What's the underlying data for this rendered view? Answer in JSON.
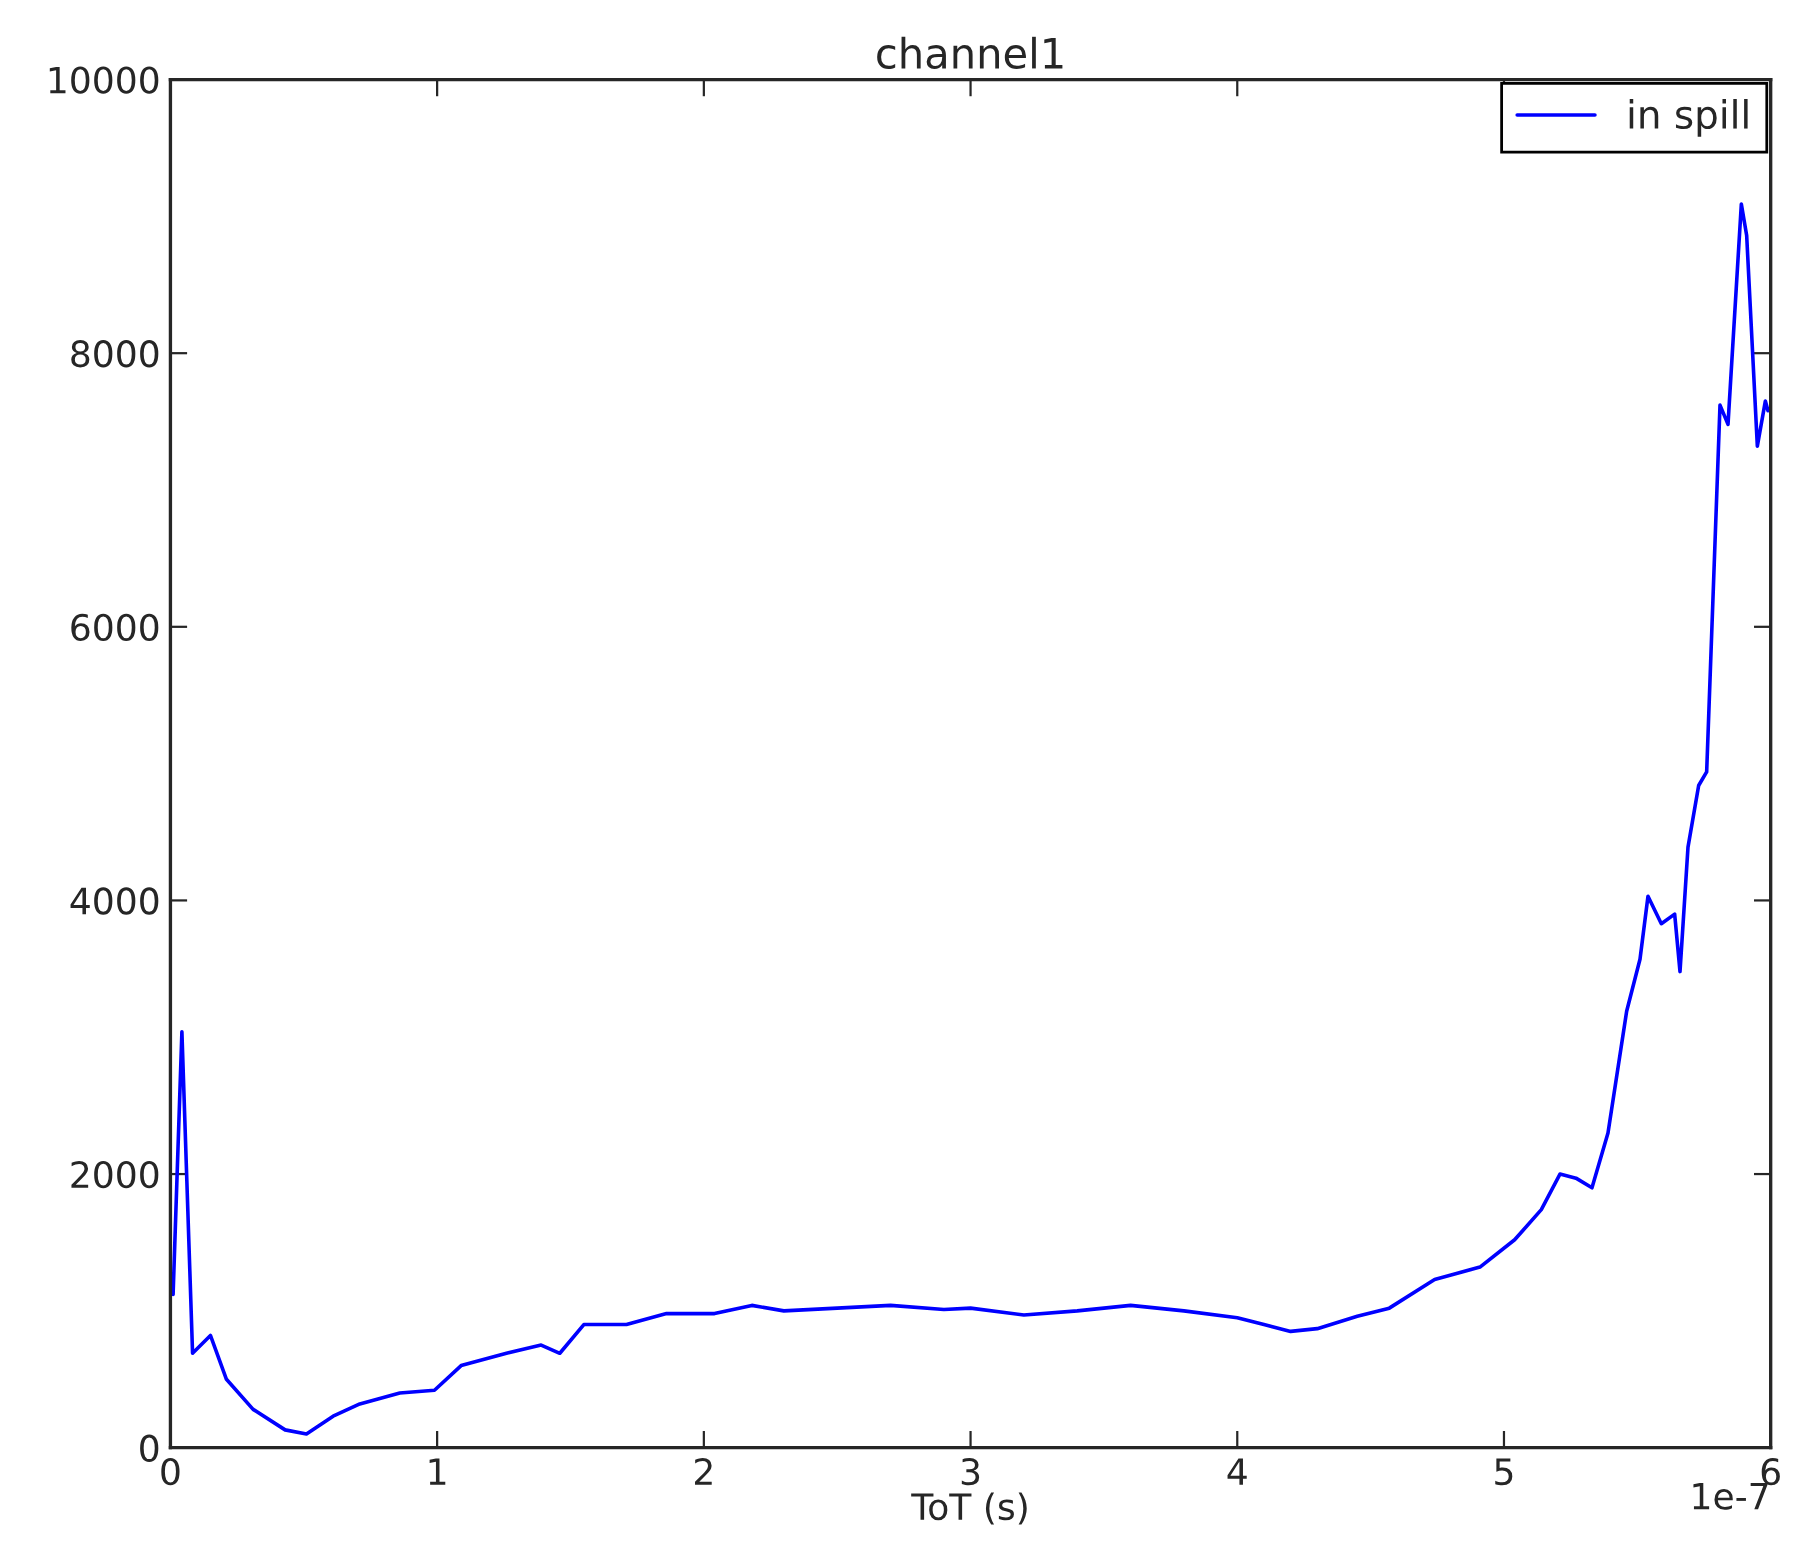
{
  "chart_data": {
    "type": "line",
    "title": "channel1",
    "xlabel": "ToT (s)",
    "annotations": [
      "1e-7"
    ],
    "xlim": [
      0,
      6
    ],
    "xticks": [
      0,
      1,
      2,
      3,
      4,
      5,
      6
    ],
    "ylim": [
      0,
      10000
    ],
    "yticks": [
      0,
      2000,
      4000,
      6000,
      8000,
      10000
    ],
    "grid": false,
    "legend": "top right",
    "marker": "none",
    "line_style": "solid",
    "series": [
      {
        "name": "in spill",
        "color": "#0000ff",
        "x": [
          0.01,
          0.043,
          0.083,
          0.15,
          0.21,
          0.31,
          0.43,
          0.51,
          0.61,
          0.71,
          0.86,
          0.99,
          1.09,
          1.26,
          1.39,
          1.46,
          1.55,
          1.71,
          1.86,
          2.04,
          2.18,
          2.3,
          2.5,
          2.7,
          2.9,
          3.0,
          3.2,
          3.4,
          3.6,
          3.8,
          4.0,
          4.1,
          4.2,
          4.3,
          4.45,
          4.57,
          4.74,
          4.91,
          5.04,
          5.14,
          5.21,
          5.27,
          5.33,
          5.39,
          5.46,
          5.51,
          5.54,
          5.59,
          5.64,
          5.66,
          5.69,
          5.73,
          5.76,
          5.81,
          5.84,
          5.89,
          5.91,
          5.95,
          5.98,
          5.99
        ],
        "values": [
          1120,
          3040,
          690,
          820,
          500,
          280,
          130,
          100,
          230,
          320,
          400,
          420,
          600,
          690,
          750,
          690,
          900,
          900,
          980,
          980,
          1040,
          1000,
          1020,
          1040,
          1010,
          1020,
          970,
          1000,
          1040,
          1000,
          950,
          900,
          850,
          870,
          960,
          1020,
          1230,
          1320,
          1520,
          1740,
          2000,
          1970,
          1900,
          2300,
          3190,
          3570,
          4030,
          3830,
          3900,
          3480,
          4390,
          4840,
          4940,
          7620,
          7480,
          9090,
          8860,
          7320,
          7650,
          7580
        ]
      }
    ]
  }
}
